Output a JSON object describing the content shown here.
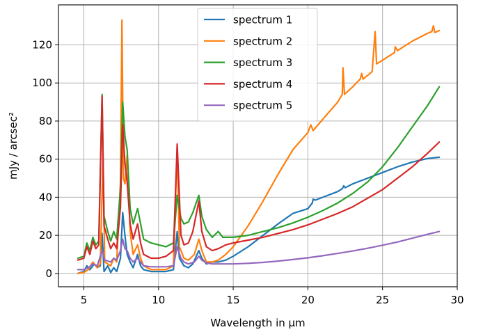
{
  "chart_data": {
    "type": "line",
    "xlabel": "Wavelength in µm",
    "ylabel": "mJy / arcsec²",
    "xlim": [
      3.3,
      30
    ],
    "ylim": [
      -7,
      141
    ],
    "xticks": [
      5,
      10,
      15,
      20,
      25,
      30
    ],
    "yticks": [
      0,
      20,
      40,
      60,
      80,
      100,
      120
    ],
    "grid": true,
    "legend_position": "upper center",
    "series": [
      {
        "name": "spectrum 1",
        "color": "#1f77b4",
        "points": [
          [
            4.6,
            0
          ],
          [
            5.0,
            1
          ],
          [
            5.2,
            4
          ],
          [
            5.4,
            2
          ],
          [
            5.7,
            5
          ],
          [
            5.9,
            3
          ],
          [
            6.1,
            4
          ],
          [
            6.22,
            21
          ],
          [
            6.35,
            1
          ],
          [
            6.6,
            4
          ],
          [
            6.8,
            0.5
          ],
          [
            7.0,
            3
          ],
          [
            7.2,
            1
          ],
          [
            7.45,
            8
          ],
          [
            7.6,
            32
          ],
          [
            7.75,
            20
          ],
          [
            7.9,
            10
          ],
          [
            8.1,
            6
          ],
          [
            8.3,
            3
          ],
          [
            8.6,
            10
          ],
          [
            8.8,
            4
          ],
          [
            9.0,
            2
          ],
          [
            9.5,
            1
          ],
          [
            10.5,
            1
          ],
          [
            11.0,
            2
          ],
          [
            11.25,
            22
          ],
          [
            11.4,
            8
          ],
          [
            11.7,
            4
          ],
          [
            12.0,
            3
          ],
          [
            12.3,
            5
          ],
          [
            12.7,
            12
          ],
          [
            12.9,
            8
          ],
          [
            13.2,
            5
          ],
          [
            13.6,
            6
          ],
          [
            14.0,
            6
          ],
          [
            14.5,
            7
          ],
          [
            15.0,
            9
          ],
          [
            16.0,
            14
          ],
          [
            17.0,
            20
          ],
          [
            18.0,
            26
          ],
          [
            19.0,
            31.5
          ],
          [
            20.0,
            34
          ],
          [
            20.3,
            37
          ],
          [
            20.35,
            39
          ],
          [
            20.5,
            38.5
          ],
          [
            21.0,
            40
          ],
          [
            22.0,
            43
          ],
          [
            22.3,
            44.5
          ],
          [
            22.4,
            46
          ],
          [
            22.5,
            45
          ],
          [
            23.0,
            47
          ],
          [
            24.0,
            50
          ],
          [
            25.0,
            53
          ],
          [
            26.0,
            56
          ],
          [
            27.0,
            58.5
          ],
          [
            28.0,
            60.3
          ],
          [
            28.8,
            61
          ]
        ]
      },
      {
        "name": "spectrum 2",
        "color": "#ff7f0e",
        "points": [
          [
            4.6,
            0
          ],
          [
            5.0,
            0.5
          ],
          [
            5.3,
            2
          ],
          [
            5.6,
            6
          ],
          [
            5.9,
            3
          ],
          [
            6.1,
            5
          ],
          [
            6.2,
            36
          ],
          [
            6.28,
            58
          ],
          [
            6.4,
            6
          ],
          [
            6.8,
            4
          ],
          [
            7.0,
            8
          ],
          [
            7.2,
            6
          ],
          [
            7.45,
            48
          ],
          [
            7.55,
            133
          ],
          [
            7.65,
            50
          ],
          [
            7.75,
            47
          ],
          [
            7.9,
            62
          ],
          [
            8.1,
            22
          ],
          [
            8.3,
            10
          ],
          [
            8.6,
            15
          ],
          [
            8.8,
            8
          ],
          [
            9.0,
            4
          ],
          [
            9.5,
            2
          ],
          [
            10.5,
            2
          ],
          [
            11.0,
            4
          ],
          [
            11.25,
            66
          ],
          [
            11.4,
            14
          ],
          [
            11.7,
            8
          ],
          [
            12.0,
            7
          ],
          [
            12.4,
            10
          ],
          [
            12.7,
            18
          ],
          [
            12.9,
            12
          ],
          [
            13.2,
            6
          ],
          [
            13.6,
            6
          ],
          [
            14.0,
            7
          ],
          [
            14.5,
            10
          ],
          [
            15.0,
            14
          ],
          [
            16.0,
            25
          ],
          [
            17.0,
            38
          ],
          [
            18.0,
            52
          ],
          [
            19.0,
            65
          ],
          [
            20.0,
            74
          ],
          [
            20.2,
            78
          ],
          [
            20.35,
            75
          ],
          [
            21.0,
            81
          ],
          [
            22.0,
            90
          ],
          [
            22.3,
            94
          ],
          [
            22.35,
            108
          ],
          [
            22.45,
            94
          ],
          [
            23.0,
            98
          ],
          [
            23.5,
            102
          ],
          [
            23.6,
            105
          ],
          [
            23.7,
            102
          ],
          [
            24.3,
            106
          ],
          [
            24.5,
            127
          ],
          [
            24.6,
            110
          ],
          [
            25.0,
            112
          ],
          [
            25.8,
            116
          ],
          [
            25.85,
            119
          ],
          [
            26.0,
            117
          ],
          [
            27.0,
            122
          ],
          [
            28.0,
            126
          ],
          [
            28.3,
            127
          ],
          [
            28.4,
            130
          ],
          [
            28.5,
            126.5
          ],
          [
            28.8,
            127.5
          ]
        ]
      },
      {
        "name": "spectrum 3",
        "color": "#2ca02c",
        "points": [
          [
            4.6,
            8
          ],
          [
            5.0,
            9
          ],
          [
            5.2,
            16
          ],
          [
            5.4,
            12
          ],
          [
            5.6,
            19
          ],
          [
            5.8,
            15
          ],
          [
            6.0,
            17
          ],
          [
            6.22,
            94
          ],
          [
            6.35,
            30
          ],
          [
            6.6,
            22
          ],
          [
            6.8,
            17
          ],
          [
            7.0,
            22
          ],
          [
            7.2,
            18
          ],
          [
            7.45,
            45
          ],
          [
            7.6,
            90
          ],
          [
            7.75,
            72
          ],
          [
            7.9,
            65
          ],
          [
            8.1,
            34
          ],
          [
            8.3,
            26
          ],
          [
            8.6,
            34
          ],
          [
            8.8,
            26
          ],
          [
            9.0,
            18
          ],
          [
            9.5,
            16
          ],
          [
            10.0,
            15
          ],
          [
            10.5,
            14
          ],
          [
            11.0,
            16
          ],
          [
            11.25,
            41
          ],
          [
            11.5,
            29
          ],
          [
            11.7,
            26
          ],
          [
            12.0,
            27
          ],
          [
            12.3,
            32
          ],
          [
            12.7,
            41
          ],
          [
            12.9,
            30
          ],
          [
            13.2,
            23
          ],
          [
            13.6,
            19
          ],
          [
            14.0,
            22
          ],
          [
            14.3,
            19
          ],
          [
            15.0,
            19
          ],
          [
            16.0,
            20
          ],
          [
            17.0,
            22
          ],
          [
            18.0,
            24
          ],
          [
            19.0,
            26.5
          ],
          [
            20.0,
            29.5
          ],
          [
            21.0,
            33
          ],
          [
            22.0,
            37
          ],
          [
            23.0,
            42
          ],
          [
            24.0,
            48
          ],
          [
            25.0,
            56
          ],
          [
            26.0,
            66
          ],
          [
            27.0,
            77
          ],
          [
            28.0,
            88
          ],
          [
            28.8,
            98
          ]
        ]
      },
      {
        "name": "spectrum 4",
        "color": "#d62728",
        "points": [
          [
            4.6,
            7
          ],
          [
            5.0,
            8
          ],
          [
            5.2,
            14
          ],
          [
            5.4,
            10
          ],
          [
            5.6,
            17
          ],
          [
            5.8,
            13
          ],
          [
            6.0,
            15
          ],
          [
            6.22,
            93
          ],
          [
            6.35,
            25
          ],
          [
            6.6,
            18
          ],
          [
            6.8,
            13
          ],
          [
            7.0,
            16
          ],
          [
            7.2,
            13
          ],
          [
            7.45,
            35
          ],
          [
            7.6,
            78
          ],
          [
            7.75,
            58
          ],
          [
            7.9,
            48
          ],
          [
            8.1,
            26
          ],
          [
            8.3,
            18
          ],
          [
            8.6,
            26
          ],
          [
            8.8,
            16
          ],
          [
            9.0,
            10
          ],
          [
            9.5,
            8
          ],
          [
            10.0,
            8
          ],
          [
            10.5,
            9
          ],
          [
            11.0,
            12
          ],
          [
            11.25,
            68
          ],
          [
            11.5,
            20
          ],
          [
            11.7,
            15
          ],
          [
            12.0,
            16
          ],
          [
            12.3,
            22
          ],
          [
            12.7,
            38
          ],
          [
            12.9,
            22
          ],
          [
            13.2,
            14
          ],
          [
            13.6,
            12
          ],
          [
            14.0,
            13
          ],
          [
            14.5,
            15
          ],
          [
            15.0,
            16
          ],
          [
            16.0,
            17.5
          ],
          [
            17.0,
            19
          ],
          [
            18.0,
            21
          ],
          [
            19.0,
            23
          ],
          [
            20.0,
            25.5
          ],
          [
            21.0,
            28.5
          ],
          [
            22.0,
            31.5
          ],
          [
            23.0,
            35
          ],
          [
            24.0,
            39.5
          ],
          [
            25.0,
            44
          ],
          [
            26.0,
            50
          ],
          [
            27.0,
            56
          ],
          [
            28.0,
            63
          ],
          [
            28.8,
            69
          ]
        ]
      },
      {
        "name": "spectrum 5",
        "color": "#9467bd",
        "points": [
          [
            4.6,
            2
          ],
          [
            5.0,
            2
          ],
          [
            5.3,
            3
          ],
          [
            5.6,
            5
          ],
          [
            5.9,
            4
          ],
          [
            6.22,
            12
          ],
          [
            6.4,
            7
          ],
          [
            6.8,
            6
          ],
          [
            7.0,
            8
          ],
          [
            7.2,
            7
          ],
          [
            7.45,
            12
          ],
          [
            7.6,
            18
          ],
          [
            7.75,
            13
          ],
          [
            7.9,
            12
          ],
          [
            8.1,
            8
          ],
          [
            8.3,
            6
          ],
          [
            8.6,
            8
          ],
          [
            8.8,
            6
          ],
          [
            9.0,
            4
          ],
          [
            9.5,
            3.5
          ],
          [
            10.5,
            3.5
          ],
          [
            11.0,
            4
          ],
          [
            11.25,
            14
          ],
          [
            11.5,
            8
          ],
          [
            11.7,
            6
          ],
          [
            12.0,
            5
          ],
          [
            12.4,
            6
          ],
          [
            12.7,
            9
          ],
          [
            12.9,
            7
          ],
          [
            13.2,
            5.5
          ],
          [
            13.6,
            5
          ],
          [
            14.0,
            5
          ],
          [
            15.0,
            5
          ],
          [
            16.0,
            5.3
          ],
          [
            17.0,
            5.8
          ],
          [
            18.0,
            6.5
          ],
          [
            19.0,
            7.3
          ],
          [
            20.0,
            8.2
          ],
          [
            21.0,
            9.3
          ],
          [
            22.0,
            10.5
          ],
          [
            23.0,
            11.8
          ],
          [
            24.0,
            13.2
          ],
          [
            25.0,
            14.8
          ],
          [
            26.0,
            16.5
          ],
          [
            27.0,
            18.5
          ],
          [
            28.0,
            20.5
          ],
          [
            28.8,
            22
          ]
        ]
      }
    ]
  }
}
